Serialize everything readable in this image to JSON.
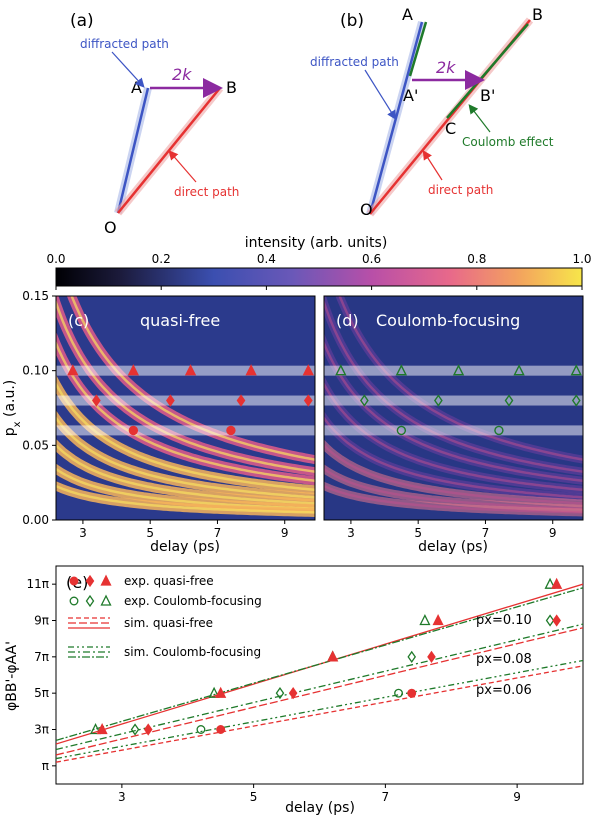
{
  "colors": {
    "direct": "#e63232",
    "diffracted": "#3d55c4",
    "coulomb": "#1f7a2a",
    "accent": "#8c2aa0"
  },
  "panel_a": {
    "label": "(a)",
    "point_a": "A",
    "point_b": "B",
    "point_o": "O",
    "arrow_2k": "2k",
    "diffracted_label": "diffracted path",
    "direct_label": "direct path"
  },
  "panel_b": {
    "label": "(b)",
    "point_a": "A",
    "point_b": "B",
    "point_a2": "A'",
    "point_b2": "B'",
    "point_c": "C",
    "point_o": "O",
    "arrow_2k": "2k",
    "diffracted_label": "diffracted path",
    "coulomb_label": "Coulomb effect",
    "direct_label": "direct path"
  },
  "colorbar": {
    "label": "intensity (arb. units)",
    "ticks": [
      "0.0",
      "0.2",
      "0.4",
      "0.6",
      "0.8",
      "1.0"
    ],
    "range": [
      0,
      1
    ]
  },
  "chart_data": [
    {
      "type": "heatmap",
      "panel": "(c)",
      "title": "quasi-free",
      "xlabel": "delay (ps)",
      "ylabel": "p_x (a.u.)",
      "xlim": [
        2.2,
        9.9
      ],
      "ylim": [
        0,
        0.15
      ],
      "xticks": [
        "3",
        "5",
        "7",
        "9"
      ],
      "yticks": [
        "0.00",
        "0.05",
        "0.10",
        "0.15"
      ],
      "markers": [
        {
          "shape": "triangle",
          "x": [
            2.7,
            4.5,
            6.2,
            8.0,
            9.7
          ],
          "y": 0.1
        },
        {
          "shape": "diamond",
          "x": [
            3.4,
            5.6,
            7.7,
            9.7
          ],
          "y": 0.08
        },
        {
          "shape": "circle",
          "x": [
            4.5,
            7.4
          ],
          "y": 0.06
        }
      ]
    },
    {
      "type": "heatmap",
      "panel": "(d)",
      "title": "Coulomb-focusing",
      "xlabel": "delay (ps)",
      "xlim": [
        2.2,
        9.9
      ],
      "ylim": [
        0,
        0.15
      ],
      "xticks": [
        "3",
        "5",
        "7",
        "9"
      ],
      "markers": [
        {
          "shape": "triangle",
          "x": [
            2.7,
            4.5,
            6.2,
            8.0,
            9.7
          ],
          "y": 0.1
        },
        {
          "shape": "diamond",
          "x": [
            3.4,
            5.6,
            7.7,
            9.7
          ],
          "y": 0.08
        },
        {
          "shape": "circle",
          "x": [
            4.5,
            7.4
          ],
          "y": 0.06
        }
      ]
    },
    {
      "type": "scatter",
      "panel": "(e)",
      "xlabel": "delay (ps)",
      "ylabel": "φBB'-φAA'",
      "xlim": [
        2,
        10
      ],
      "ylim_pi": [
        0,
        12
      ],
      "xticks": [
        "3",
        "5",
        "7",
        "9"
      ],
      "yticks": [
        "π",
        "3π",
        "5π",
        "7π",
        "9π",
        "11π"
      ],
      "legend": [
        "exp. quasi-free",
        "exp. Coulomb-focusing",
        "sim. quasi-free",
        "sim. Coulomb-focusing"
      ],
      "annotations": [
        "px=0.10",
        "px=0.08",
        "px=0.06"
      ],
      "exp_quasi_free": {
        "px_0_10": {
          "x": [
            2.7,
            4.5,
            6.2,
            7.8,
            9.6
          ],
          "y_pi": [
            3,
            5,
            7,
            9,
            11
          ]
        },
        "px_0_08": {
          "x": [
            3.4,
            5.6,
            7.7,
            9.6
          ],
          "y_pi": [
            3,
            5,
            7,
            9
          ]
        },
        "px_0_06": {
          "x": [
            4.5,
            7.4
          ],
          "y_pi": [
            3,
            5
          ]
        }
      },
      "exp_coulomb": {
        "px_0_10": {
          "x": [
            2.6,
            4.4,
            6.2,
            7.6,
            9.5
          ],
          "y_pi": [
            3,
            5,
            7,
            9,
            11
          ]
        },
        "px_0_08": {
          "x": [
            3.2,
            5.4,
            7.4,
            9.5
          ],
          "y_pi": [
            3,
            5,
            7,
            9
          ]
        },
        "px_0_06": {
          "x": [
            4.2,
            7.2
          ],
          "y_pi": [
            3,
            5
          ]
        }
      },
      "sim_quasi_free": [
        {
          "px": 0.1,
          "x": [
            2,
            10
          ],
          "y_pi": [
            2.2,
            11.0
          ]
        },
        {
          "px": 0.08,
          "x": [
            2,
            10
          ],
          "y_pi": [
            1.6,
            8.6
          ]
        },
        {
          "px": 0.06,
          "x": [
            2,
            10
          ],
          "y_pi": [
            1.2,
            6.5
          ]
        }
      ],
      "sim_coulomb": [
        {
          "px": 0.1,
          "x": [
            2,
            10
          ],
          "y_pi": [
            2.4,
            10.8
          ]
        },
        {
          "px": 0.08,
          "x": [
            2,
            10
          ],
          "y_pi": [
            1.9,
            8.8
          ]
        },
        {
          "px": 0.06,
          "x": [
            2,
            10
          ],
          "y_pi": [
            1.4,
            6.8
          ]
        }
      ]
    }
  ]
}
